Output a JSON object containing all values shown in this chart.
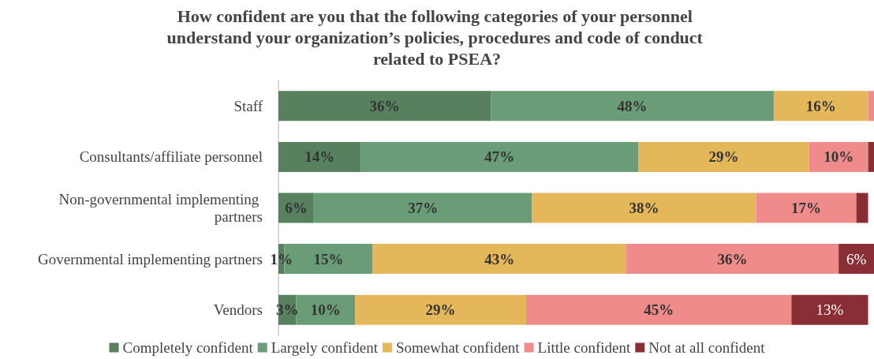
{
  "chart_data": {
    "type": "bar",
    "orientation": "horizontal",
    "stacked": true,
    "title": "How confident are you that the following categories of your personnel understand your organization’s policies, procedures and code of conduct related to PSEA?",
    "categories": [
      "Staff",
      "Consultants/affiliate personnel",
      "Non-governmental implementing partners",
      "Governmental implementing partners",
      "Vendors"
    ],
    "series": [
      {
        "name": "Completely confident",
        "color": "#56805e",
        "values": [
          36,
          14,
          6,
          1,
          3
        ],
        "value_labels": [
          "36%",
          "14%",
          "6%",
          "1%",
          "3%"
        ]
      },
      {
        "name": "Largely confident",
        "color": "#6a9c78",
        "values": [
          48,
          47,
          37,
          15,
          10
        ],
        "value_labels": [
          "48%",
          "47%",
          "37%",
          "15%",
          "10%"
        ]
      },
      {
        "name": "Somewhat confident",
        "color": "#e5b75b",
        "values": [
          16,
          29,
          38,
          43,
          29
        ],
        "value_labels": [
          "16%",
          "29%",
          "38%",
          "43%",
          "29%"
        ]
      },
      {
        "name": "Little confident",
        "color": "#f08b8b",
        "values": [
          1,
          10,
          17,
          36,
          45
        ],
        "value_labels": [
          null,
          "10%",
          "17%",
          "36%",
          "45%"
        ]
      },
      {
        "name": "Not at all confident",
        "color": "#8a2e36",
        "values": [
          null,
          1,
          2,
          6,
          13
        ],
        "value_labels": [
          null,
          null,
          null,
          "6%",
          "13%"
        ]
      }
    ],
    "xlim": [
      0,
      101
    ],
    "tick_labels": "y",
    "legend": "bottom"
  }
}
